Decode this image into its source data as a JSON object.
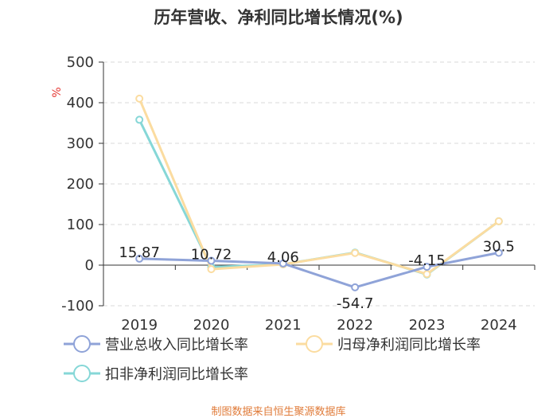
{
  "title": "历年营收、净利同比增长情况(%)",
  "source": "制图数据来自恒生聚源数据库",
  "chart_data": {
    "type": "line",
    "categories": [
      "2019",
      "2020",
      "2021",
      "2022",
      "2023",
      "2024"
    ],
    "ylabel": "%",
    "ylim": [
      -100,
      500
    ],
    "yticks": [
      500,
      400,
      300,
      200,
      100,
      0,
      -100
    ],
    "grid": true,
    "legend_position": "bottom-left",
    "series": [
      {
        "name": "营业总收入同比增长率",
        "color": "#8fa3d8",
        "values": [
          15.87,
          10.72,
          4.06,
          -54.7,
          -4.15,
          30.5
        ],
        "labels": [
          "15.87",
          "10.72",
          "4.06",
          "-54.7",
          "-4.15",
          "30.5"
        ]
      },
      {
        "name": "归母净利润同比增长率",
        "color": "#fbdca0",
        "values": [
          410,
          -10,
          2,
          30,
          -22,
          108
        ]
      },
      {
        "name": "扣非净利润同比增长率",
        "color": "#86d7d7",
        "values": [
          358,
          -5,
          2,
          31,
          -23,
          108
        ]
      }
    ]
  }
}
